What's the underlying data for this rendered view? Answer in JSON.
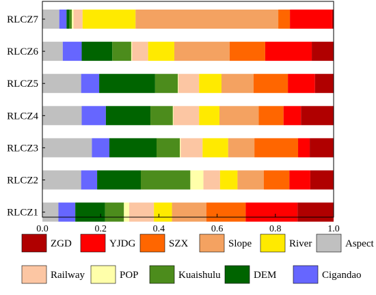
{
  "chart_data": {
    "type": "bar",
    "orientation": "horizontal",
    "stacked": true,
    "title": "",
    "xlabel": "",
    "ylabel": "",
    "xlim": [
      0,
      1
    ],
    "xticks": [
      "0.0",
      "0.2",
      "0.4",
      "0.6",
      "0.8",
      "1.0"
    ],
    "grid": false,
    "legend_position": "bottom",
    "categories": [
      "RLCZ7",
      "RLCZ6",
      "RLCZ5",
      "RLCZ4",
      "RLCZ3",
      "RLCZ2",
      "RLCZ1"
    ],
    "series": [
      {
        "name": "Aspect",
        "color": "#c0c0c0",
        "values": [
          0.058,
          0.07,
          0.133,
          0.135,
          0.17,
          0.133,
          0.055
        ]
      },
      {
        "name": "Cigandao",
        "color": "#6666ff",
        "values": [
          0.025,
          0.065,
          0.062,
          0.083,
          0.06,
          0.055,
          0.058
        ]
      },
      {
        "name": "DEM",
        "color": "#006400",
        "values": [
          0.01,
          0.105,
          0.192,
          0.153,
          0.162,
          0.15,
          0.102
        ]
      },
      {
        "name": "Kuaishulu",
        "color": "#4c8c1c",
        "values": [
          0.008,
          0.065,
          0.078,
          0.077,
          0.08,
          0.17,
          0.065
        ]
      },
      {
        "name": "POP",
        "color": "#ffffaa",
        "values": [
          0.006,
          0.003,
          0.002,
          0.002,
          0.003,
          0.045,
          0.018
        ]
      },
      {
        "name": "Railway",
        "color": "#fcc6a3",
        "values": [
          0.031,
          0.055,
          0.071,
          0.088,
          0.075,
          0.057,
          0.085
        ]
      },
      {
        "name": "River",
        "color": "#ffea00",
        "values": [
          0.182,
          0.09,
          0.077,
          0.07,
          0.088,
          0.06,
          0.062
        ]
      },
      {
        "name": "Slope",
        "color": "#f4a261",
        "values": [
          0.49,
          0.19,
          0.11,
          0.135,
          0.09,
          0.09,
          0.118
        ]
      },
      {
        "name": "SZX",
        "color": "#ff6600",
        "values": [
          0.04,
          0.122,
          0.118,
          0.085,
          0.15,
          0.088,
          0.135
        ]
      },
      {
        "name": "YJDG",
        "color": "#ff0000",
        "values": [
          0.145,
          0.16,
          0.093,
          0.06,
          0.04,
          0.072,
          0.178
        ]
      },
      {
        "name": "ZGD",
        "color": "#b00000",
        "values": [
          0.005,
          0.075,
          0.064,
          0.112,
          0.082,
          0.08,
          0.124
        ]
      }
    ],
    "legend_rows": [
      [
        "ZGD",
        "YJDG",
        "SZX",
        "Slope",
        "River",
        "Aspect"
      ],
      [
        "Railway",
        "POP",
        "Kuaishulu",
        "DEM",
        "Cigandao"
      ]
    ]
  }
}
